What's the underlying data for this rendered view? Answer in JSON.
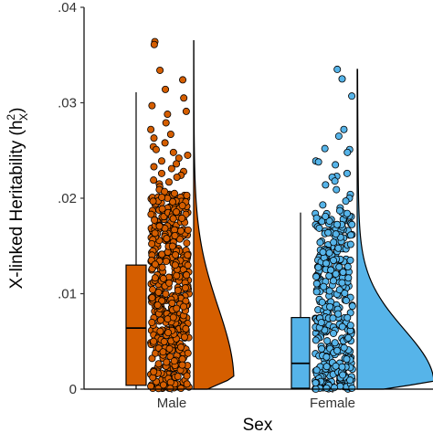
{
  "chart_data": {
    "type": "raincloud",
    "xlabel": "Sex",
    "ylabel": "X-linked Heritability (h",
    "ylabel_sup": "2",
    "ylabel_sub": "X",
    "ylabel_end": ")",
    "ylim": [
      0,
      0.04
    ],
    "yticks": [
      {
        "value": 0,
        "label": "0"
      },
      {
        "value": 0.01,
        "label": ".01"
      },
      {
        "value": 0.02,
        "label": ".02"
      },
      {
        "value": 0.03,
        "label": ".03"
      },
      {
        "value": 0.04,
        "label": ".04"
      }
    ],
    "grid": false,
    "legend": "none",
    "categories": [
      "Male",
      "Female"
    ],
    "series": [
      {
        "category": "Male",
        "color": "#D55E00",
        "box": {
          "whisker_low": 0.0,
          "q1": 0.0004,
          "median": 0.0064,
          "q3": 0.013,
          "whisker_high": 0.0311
        },
        "density_top": 0.0365,
        "density_peak_at": 0.0012,
        "points": [
          0.0364,
          0.0361,
          0.0334,
          0.0324,
          0.0314,
          0.0305,
          0.0297,
          0.0291,
          0.0288,
          0.0279,
          0.0272,
          0.0267,
          0.0263,
          0.0258,
          0.0254,
          0.0251,
          0.0248,
          0.0245,
          0.0242,
          0.0239,
          0.0236,
          0.0233,
          0.0231,
          0.0228,
          0.0226,
          0.0224,
          0.0222,
          0.0219,
          0.0217,
          0.0215,
          0.0212,
          0.0209,
          0.0207,
          0.0205,
          0.0203,
          0.0201
        ]
      },
      {
        "category": "Female",
        "color": "#56B4E9",
        "box": {
          "whisker_low": 0.0,
          "q1": 0.0001,
          "median": 0.0027,
          "q3": 0.0075,
          "whisker_high": 0.0185
        },
        "density_top": 0.0335,
        "density_peak_at": 0.0008,
        "points": [
          0.0335,
          0.0325,
          0.0307,
          0.0272,
          0.0265,
          0.0252,
          0.0251,
          0.0248,
          0.0239,
          0.0238,
          0.0235,
          0.0226,
          0.0223,
          0.0222,
          0.0218,
          0.0214,
          0.0209,
          0.0204,
          0.02,
          0.0197,
          0.0193,
          0.019,
          0.0187,
          0.0184,
          0.0181
        ]
      }
    ]
  }
}
